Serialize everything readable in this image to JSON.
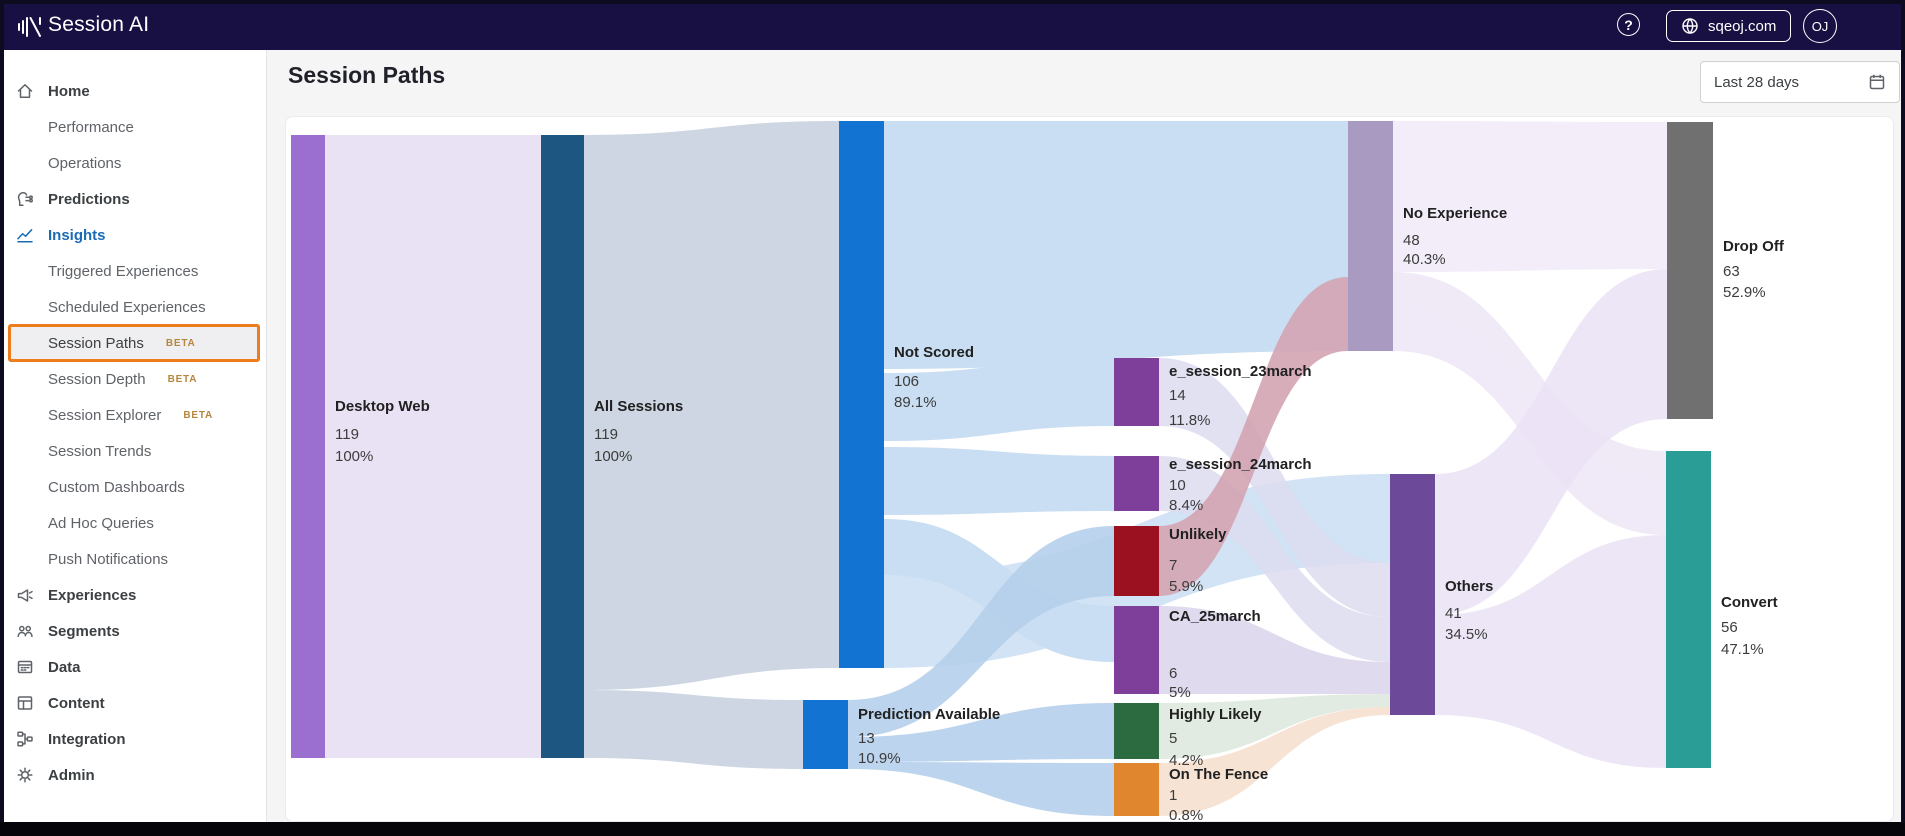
{
  "topbar": {
    "logo": "Session AI",
    "help_glyph": "?",
    "domain": "sqeoj.com",
    "avatar_initials": "OJ"
  },
  "sidebar": {
    "beta_label": "BETA",
    "items": [
      {
        "label": "Home",
        "kind": "top",
        "icon": "home-icon"
      },
      {
        "label": "Performance",
        "kind": "sub"
      },
      {
        "label": "Operations",
        "kind": "sub"
      },
      {
        "label": "Predictions",
        "kind": "top",
        "icon": "predictions-icon"
      },
      {
        "label": "Insights",
        "kind": "top",
        "icon": "insights-icon",
        "active_section": true
      },
      {
        "label": "Triggered Experiences",
        "kind": "sub"
      },
      {
        "label": "Scheduled Experiences",
        "kind": "sub"
      },
      {
        "label": "Session Paths",
        "kind": "sub",
        "active_page": true,
        "beta": true
      },
      {
        "label": "Session Depth",
        "kind": "sub",
        "beta": true
      },
      {
        "label": "Session Explorer",
        "kind": "sub",
        "beta": true
      },
      {
        "label": "Session Trends",
        "kind": "sub"
      },
      {
        "label": "Custom Dashboards",
        "kind": "sub"
      },
      {
        "label": "Ad Hoc Queries",
        "kind": "sub"
      },
      {
        "label": "Push Notifications",
        "kind": "sub"
      },
      {
        "label": "Experiences",
        "kind": "top",
        "icon": "experiences-icon"
      },
      {
        "label": "Segments",
        "kind": "top",
        "icon": "segments-icon"
      },
      {
        "label": "Data",
        "kind": "top",
        "icon": "data-icon"
      },
      {
        "label": "Content",
        "kind": "top",
        "icon": "content-icon"
      },
      {
        "label": "Integration",
        "kind": "top",
        "icon": "integration-icon"
      },
      {
        "label": "Admin",
        "kind": "top",
        "icon": "admin-icon"
      }
    ]
  },
  "main": {
    "title": "Session Paths",
    "date_range": "Last 28 days"
  },
  "chart_data": {
    "type": "sankey",
    "orientation": "left-to-right",
    "nodes": [
      {
        "id": "dw",
        "label": "Desktop Web",
        "value": 119,
        "percent": "100%",
        "color": "#9a6fd0"
      },
      {
        "id": "as",
        "label": "All Sessions",
        "value": 119,
        "percent": "100%",
        "color": "#1d5680"
      },
      {
        "id": "ns",
        "label": "Not Scored",
        "value": 106,
        "percent": "89.1%",
        "color": "#1373d3"
      },
      {
        "id": "pa",
        "label": "Prediction Available",
        "value": 13,
        "percent": "10.9%",
        "color": "#1373d3"
      },
      {
        "id": "e23",
        "label": "e_session_23march",
        "value": 14,
        "percent": "11.8%",
        "color": "#7d3f99"
      },
      {
        "id": "e24",
        "label": "e_session_24march",
        "value": 10,
        "percent": "8.4%",
        "color": "#7d3f99"
      },
      {
        "id": "unl",
        "label": "Unlikely",
        "value": 7,
        "percent": "5.9%",
        "color": "#9c1120"
      },
      {
        "id": "ca",
        "label": "CA_25march",
        "value": 6,
        "percent": "5%",
        "color": "#7d3f99"
      },
      {
        "id": "hl",
        "label": "Highly Likely",
        "value": 5,
        "percent": "4.2%",
        "color": "#2b6b3f"
      },
      {
        "id": "otf",
        "label": "On The Fence",
        "value": 1,
        "percent": "0.8%",
        "color": "#df862f"
      },
      {
        "id": "noexp",
        "label": "No Experience",
        "value": 48,
        "percent": "40.3%",
        "color": "#a89ac1"
      },
      {
        "id": "oth",
        "label": "Others",
        "value": 41,
        "percent": "34.5%",
        "color": "#6d4a99"
      },
      {
        "id": "drop",
        "label": "Drop Off",
        "value": 63,
        "percent": "52.9%",
        "color": "#707070"
      },
      {
        "id": "conv",
        "label": "Convert",
        "value": 56,
        "percent": "47.1%",
        "color": "#2a9d96"
      }
    ],
    "links": [
      {
        "source": "dw",
        "target": "as",
        "value": 119
      },
      {
        "source": "as",
        "target": "ns",
        "value": 106
      },
      {
        "source": "as",
        "target": "pa",
        "value": 13
      },
      {
        "source": "ns",
        "target": "noexp",
        "value": 41
      },
      {
        "source": "ns",
        "target": "e23",
        "value": 14
      },
      {
        "source": "ns",
        "target": "e24",
        "value": 10
      },
      {
        "source": "ns",
        "target": "ca",
        "value": 6
      },
      {
        "source": "ns",
        "target": "oth",
        "value": 35
      },
      {
        "source": "pa",
        "target": "unl",
        "value": 7
      },
      {
        "source": "pa",
        "target": "hl",
        "value": 5
      },
      {
        "source": "pa",
        "target": "otf",
        "value": 1
      },
      {
        "source": "unl",
        "target": "noexp",
        "value": 7
      },
      {
        "source": "e23",
        "target": "oth"
      },
      {
        "source": "e24",
        "target": "oth"
      },
      {
        "source": "ca",
        "target": "oth"
      },
      {
        "source": "hl",
        "target": "oth"
      },
      {
        "source": "otf",
        "target": "oth"
      },
      {
        "source": "noexp",
        "target": "drop"
      },
      {
        "source": "noexp",
        "target": "conv"
      },
      {
        "source": "oth",
        "target": "drop"
      },
      {
        "source": "oth",
        "target": "conv"
      }
    ]
  }
}
